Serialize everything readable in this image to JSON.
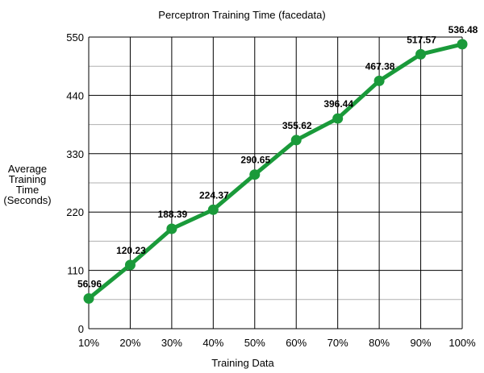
{
  "chart_data": {
    "type": "line",
    "title": "Perceptron Training Time (facedata)",
    "xlabel": "Training Data",
    "ylabel_lines": [
      "Average",
      "Training",
      "Time",
      "(Seconds)"
    ],
    "categories": [
      "10%",
      "20%",
      "30%",
      "40%",
      "50%",
      "60%",
      "70%",
      "80%",
      "90%",
      "100%"
    ],
    "values": [
      56.96,
      120.23,
      188.39,
      224.37,
      290.65,
      355.62,
      396.44,
      467.38,
      517.57,
      536.48
    ],
    "data_labels": [
      "56.96",
      "120.23",
      "188.39",
      "224.37",
      "290.65",
      "355.62",
      "396.44",
      "467.38",
      "517.57",
      "536.48"
    ],
    "ylim": [
      0,
      550
    ],
    "y_ticks": [
      "0",
      "110",
      "220",
      "330",
      "440",
      "550"
    ],
    "y_tick_values": [
      0,
      110,
      220,
      330,
      440,
      550
    ],
    "y_minor_values": [
      55,
      165,
      275,
      385,
      495
    ],
    "grid": true,
    "legend": "none"
  },
  "colors": {
    "line": "#1a9a3a",
    "marker": "#1a9a3a",
    "major_grid": "#000000",
    "minor_grid": "#b0b0b0"
  }
}
